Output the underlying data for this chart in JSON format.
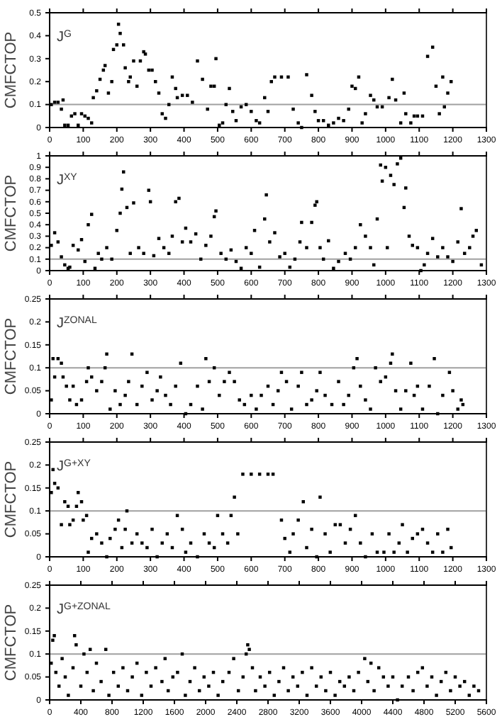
{
  "chart_data": [
    {
      "type": "scatter",
      "title": "J$^{G}$",
      "ylabel": "CMFCTOP",
      "xlim": [
        0,
        1300
      ],
      "xticks": [
        0,
        100,
        200,
        300,
        400,
        500,
        600,
        700,
        800,
        900,
        1000,
        1100,
        1200,
        1300
      ],
      "ylim": [
        0,
        0.5
      ],
      "yticks": [
        0,
        0.1,
        0.2,
        0.3,
        0.4,
        0.5
      ],
      "marker": "square",
      "grid": false,
      "ref_lines": [
        {
          "axis": "y",
          "value": 0.1,
          "color": "#a0a0a0"
        }
      ],
      "series": [
        {
          "color": "#000000",
          "x": [
            5,
            15,
            25,
            35,
            40,
            45,
            55,
            65,
            75,
            85,
            95,
            105,
            115,
            125,
            130,
            140,
            150,
            160,
            165,
            175,
            185,
            190,
            200,
            205,
            210,
            220,
            225,
            235,
            240,
            250,
            260,
            270,
            280,
            285,
            295,
            305,
            315,
            325,
            335,
            345,
            355,
            365,
            375,
            380,
            395,
            410,
            425,
            440,
            455,
            470,
            480,
            490,
            495,
            505,
            515,
            525,
            535,
            545,
            555,
            570,
            585,
            600,
            615,
            625,
            640,
            650,
            660,
            670,
            690,
            710,
            725,
            740,
            750,
            765,
            780,
            790,
            800,
            815,
            830,
            845,
            860,
            875,
            890,
            900,
            910,
            920,
            930,
            940,
            955,
            965,
            975,
            990,
            1010,
            1020,
            1030,
            1045,
            1055,
            1060,
            1075,
            1085,
            1095,
            1110,
            1125,
            1140,
            1150,
            1160,
            1170,
            1175,
            1185,
            1195
          ],
          "values": [
            0.1,
            0.11,
            0.11,
            0.08,
            0.12,
            0.01,
            0.01,
            0.05,
            0.06,
            0.01,
            0.06,
            0.05,
            0.04,
            0.02,
            0.13,
            0.16,
            0.21,
            0.25,
            0.27,
            0.15,
            0.2,
            0.34,
            0.36,
            0.45,
            0.41,
            0.36,
            0.26,
            0.2,
            0.22,
            0.29,
            0.18,
            0.29,
            0.33,
            0.32,
            0.25,
            0.25,
            0.2,
            0.15,
            0.06,
            0.04,
            0.1,
            0.22,
            0.17,
            0.13,
            0.14,
            0.14,
            0.11,
            0.29,
            0.21,
            0.08,
            0.18,
            0.18,
            0.3,
            0.01,
            0.02,
            0.1,
            0.17,
            0.07,
            0.03,
            0.09,
            0.1,
            0.07,
            0.03,
            0.02,
            0.13,
            0.07,
            0.2,
            0.22,
            0.22,
            0.22,
            0.08,
            0.02,
            0.0,
            0.23,
            0.14,
            0.07,
            0.03,
            0.03,
            0.01,
            0.02,
            0.04,
            0.03,
            0.08,
            0.18,
            0.17,
            0.22,
            0.02,
            0.06,
            0.14,
            0.12,
            0.09,
            0.09,
            0.13,
            0.21,
            0.12,
            0.02,
            0.15,
            0.06,
            0.02,
            0.05,
            0.05,
            0.05,
            0.31,
            0.35,
            0.18,
            0.06,
            0.22,
            0.09,
            0.15,
            0.2
          ]
        }
      ]
    },
    {
      "type": "scatter",
      "title": "J$^{XY}$",
      "ylabel": "CMFCTOP",
      "xlim": [
        0,
        1300
      ],
      "xticks": [
        0,
        100,
        200,
        300,
        400,
        500,
        600,
        700,
        800,
        900,
        1000,
        1100,
        1200,
        1300
      ],
      "ylim": [
        0,
        1
      ],
      "yticks": [
        0,
        0.1,
        0.2,
        0.3,
        0.4,
        0.5,
        0.6,
        0.7,
        0.8,
        0.9,
        1
      ],
      "marker": "square",
      "grid": false,
      "ref_lines": [
        {
          "axis": "y",
          "value": 0.1,
          "color": "#a0a0a0"
        }
      ],
      "series": [
        {
          "color": "#000000",
          "x": [
            5,
            15,
            25,
            35,
            45,
            55,
            60,
            70,
            85,
            95,
            105,
            115,
            125,
            135,
            145,
            155,
            170,
            185,
            200,
            210,
            215,
            220,
            230,
            240,
            250,
            265,
            280,
            295,
            300,
            310,
            325,
            340,
            355,
            365,
            375,
            385,
            395,
            405,
            420,
            435,
            450,
            465,
            480,
            490,
            495,
            510,
            525,
            540,
            555,
            570,
            585,
            600,
            610,
            625,
            640,
            645,
            655,
            670,
            685,
            700,
            715,
            730,
            745,
            750,
            765,
            780,
            790,
            795,
            805,
            815,
            830,
            845,
            860,
            880,
            895,
            910,
            925,
            940,
            955,
            965,
            975,
            985,
            990,
            1000,
            1005,
            1015,
            1025,
            1035,
            1045,
            1055,
            1060,
            1070,
            1080,
            1095,
            1105,
            1115,
            1125,
            1140,
            1155,
            1170,
            1185,
            1200,
            1215,
            1225,
            1235,
            1250,
            1260,
            1270,
            1285
          ],
          "values": [
            0.22,
            0.33,
            0.25,
            0.12,
            0.05,
            0.02,
            0.03,
            0.22,
            0.18,
            0.27,
            0.08,
            0.4,
            0.49,
            0.02,
            0.15,
            0.1,
            0.2,
            0.1,
            0.35,
            0.5,
            0.71,
            0.86,
            0.55,
            0.15,
            0.59,
            0.2,
            0.15,
            0.7,
            0.6,
            0.13,
            0.28,
            0.2,
            0.15,
            0.3,
            0.6,
            0.63,
            0.25,
            0.37,
            0.25,
            0.32,
            0.1,
            0.22,
            0.3,
            0.47,
            0.52,
            0.15,
            0.1,
            0.18,
            0.08,
            0.02,
            0.2,
            0.15,
            0.35,
            0.03,
            0.45,
            0.66,
            0.25,
            0.33,
            0.12,
            0.15,
            0.03,
            0.1,
            0.25,
            0.42,
            0.2,
            0.42,
            0.57,
            0.6,
            0.2,
            0.1,
            0.26,
            0.02,
            0.08,
            0.15,
            0.1,
            0.2,
            0.4,
            0.3,
            0.2,
            0.05,
            0.45,
            0.92,
            0.78,
            0.9,
            0.2,
            0.83,
            0.75,
            0.93,
            0.98,
            0.55,
            0.72,
            0.3,
            0.22,
            0.2,
            0.0,
            0.05,
            0.15,
            0.28,
            0.12,
            0.2,
            0.12,
            0.08,
            0.25,
            0.54,
            0.15,
            0.2,
            0.3,
            0.35,
            0.05
          ]
        }
      ]
    },
    {
      "type": "scatter",
      "title": "J$^{ZONAL}$",
      "ylabel": "CMFCTOP",
      "xlim": [
        0,
        1300
      ],
      "xticks": [
        0,
        100,
        200,
        300,
        400,
        500,
        600,
        700,
        800,
        900,
        1000,
        1100,
        1200,
        1300
      ],
      "ylim": [
        0,
        0.25
      ],
      "yticks": [
        0,
        0.05,
        0.1,
        0.15,
        0.2,
        0.25
      ],
      "marker": "square",
      "grid": false,
      "ref_lines": [
        {
          "axis": "y",
          "value": 0.1,
          "color": "#a0a0a0"
        }
      ],
      "series": [
        {
          "color": "#000000",
          "x": [
            5,
            10,
            15,
            25,
            35,
            40,
            50,
            60,
            70,
            80,
            95,
            110,
            115,
            125,
            140,
            155,
            165,
            170,
            180,
            195,
            210,
            225,
            235,
            245,
            260,
            275,
            290,
            305,
            320,
            330,
            345,
            360,
            375,
            390,
            405,
            420,
            440,
            455,
            465,
            475,
            490,
            505,
            520,
            535,
            550,
            565,
            580,
            600,
            615,
            630,
            650,
            665,
            680,
            690,
            705,
            720,
            740,
            750,
            765,
            780,
            795,
            805,
            820,
            840,
            860,
            875,
            890,
            905,
            915,
            925,
            940,
            955,
            970,
            985,
            1000,
            1015,
            1020,
            1030,
            1045,
            1060,
            1075,
            1085,
            1095,
            1110,
            1130,
            1145,
            1155,
            1170,
            1190,
            1200,
            1215,
            1225,
            1230
          ],
          "values": [
            0.03,
            0.12,
            0.08,
            0.12,
            0.11,
            0.08,
            0.06,
            0.03,
            0.06,
            0.02,
            0.03,
            0.07,
            0.1,
            0.08,
            0.05,
            0.07,
            0.1,
            0.13,
            0.01,
            0.05,
            0.02,
            0.04,
            0.07,
            0.13,
            0.02,
            0.06,
            0.09,
            0.03,
            0.05,
            0.08,
            0.04,
            0.02,
            0.06,
            0.11,
            0.0,
            0.02,
            0.06,
            0.01,
            0.12,
            0.07,
            0.1,
            0.04,
            0.07,
            0.09,
            0.07,
            0.03,
            0.02,
            0.04,
            0.01,
            0.04,
            0.06,
            0.02,
            0.05,
            0.09,
            0.07,
            0.01,
            0.06,
            0.09,
            0.02,
            0.03,
            0.05,
            0.09,
            0.04,
            0.02,
            0.07,
            0.02,
            0.04,
            0.1,
            0.12,
            0.06,
            0.03,
            0.01,
            0.1,
            0.07,
            0.08,
            0.11,
            0.13,
            0.05,
            0.01,
            0.05,
            0.11,
            0.04,
            0.06,
            0.01,
            0.06,
            0.12,
            0.0,
            0.04,
            0.09,
            0.05,
            0.01,
            0.03,
            0.02
          ]
        }
      ]
    },
    {
      "type": "scatter",
      "title": "J$^{G+XY}$",
      "ylabel": "CMFCTOP",
      "xlim": [
        0,
        1300
      ],
      "xticks": [
        0,
        100,
        200,
        300,
        400,
        500,
        600,
        700,
        800,
        900,
        1000,
        1100,
        1200,
        1300
      ],
      "ylim": [
        0,
        0.25
      ],
      "yticks": [
        0,
        0.05,
        0.1,
        0.15,
        0.2,
        0.25
      ],
      "marker": "square",
      "grid": false,
      "ref_lines": [
        {
          "axis": "y",
          "value": 0.1,
          "color": "#a0a0a0"
        }
      ],
      "series": [
        {
          "color": "#000000",
          "x": [
            5,
            10,
            15,
            25,
            35,
            45,
            55,
            60,
            70,
            80,
            85,
            95,
            100,
            110,
            115,
            125,
            140,
            155,
            170,
            180,
            195,
            205,
            215,
            225,
            230,
            245,
            260,
            275,
            290,
            305,
            320,
            335,
            350,
            365,
            380,
            395,
            405,
            420,
            440,
            460,
            475,
            490,
            500,
            515,
            530,
            540,
            550,
            560,
            575,
            600,
            625,
            650,
            665,
            690,
            700,
            715,
            725,
            740,
            755,
            765,
            780,
            795,
            805,
            820,
            835,
            850,
            865,
            880,
            895,
            910,
            925,
            940,
            960,
            975,
            995,
            1010,
            1025,
            1040,
            1050,
            1065,
            1080,
            1095,
            1110,
            1125,
            1140,
            1155,
            1170,
            1185,
            1195
          ],
          "values": [
            0.14,
            0.19,
            0.16,
            0.15,
            0.07,
            0.12,
            0.11,
            0.07,
            0.08,
            0.11,
            0.14,
            0.12,
            0.08,
            0.09,
            0.01,
            0.04,
            0.05,
            0.03,
            0.0,
            0.04,
            0.06,
            0.08,
            0.02,
            0.06,
            0.1,
            0.03,
            0.05,
            0.03,
            0.02,
            0.06,
            0.0,
            0.03,
            0.05,
            0.02,
            0.09,
            0.06,
            0.01,
            0.03,
            0.0,
            0.05,
            0.03,
            0.02,
            0.09,
            0.05,
            0.03,
            0.09,
            0.13,
            0.05,
            0.18,
            0.18,
            0.18,
            0.18,
            0.18,
            0.08,
            0.04,
            0.01,
            0.05,
            0.08,
            0.12,
            0.02,
            0.06,
            0.0,
            0.13,
            0.05,
            0.01,
            0.07,
            0.07,
            0.03,
            0.06,
            0.09,
            0.03,
            0.0,
            0.05,
            0.01,
            0.01,
            0.05,
            0.01,
            0.03,
            0.07,
            0.01,
            0.04,
            0.05,
            0.06,
            0.03,
            0.01,
            0.05,
            0.01,
            0.06,
            0.02
          ]
        }
      ]
    },
    {
      "type": "scatter",
      "title": "J$^{G+ZONAL}$",
      "ylabel": "CMFCTOP",
      "xlim": [
        0,
        5600
      ],
      "xticks": [
        0,
        400,
        800,
        1200,
        1600,
        2000,
        2400,
        2800,
        3200,
        3600,
        4000,
        4400,
        4800,
        5200,
        5600
      ],
      "ylim": [
        0,
        0.25
      ],
      "yticks": [
        0,
        0.05,
        0.1,
        0.15,
        0.2,
        0.25
      ],
      "marker": "square",
      "grid": false,
      "ref_lines": [
        {
          "axis": "y",
          "value": 0.1,
          "color": "#a0a0a0"
        }
      ],
      "series": [
        {
          "color": "#000000",
          "x": [
            20,
            40,
            60,
            80,
            120,
            160,
            200,
            240,
            300,
            320,
            340,
            400,
            440,
            480,
            520,
            560,
            600,
            660,
            720,
            760,
            820,
            880,
            940,
            1000,
            1060,
            1120,
            1180,
            1240,
            1300,
            1360,
            1440,
            1480,
            1520,
            1580,
            1640,
            1700,
            1740,
            1800,
            1860,
            1920,
            1980,
            2040,
            2100,
            2160,
            2220,
            2300,
            2360,
            2420,
            2480,
            2520,
            2540,
            2560,
            2600,
            2640,
            2700,
            2760,
            2820,
            2880,
            2940,
            3000,
            3060,
            3120,
            3180,
            3240,
            3300,
            3360,
            3420,
            3480,
            3540,
            3600,
            3660,
            3720,
            3780,
            3840,
            3900,
            3960,
            4040,
            4080,
            4120,
            4160,
            4220,
            4280,
            4340,
            4400,
            4460,
            4520,
            4600,
            4660,
            4720,
            4780,
            4840,
            4900,
            4960,
            5020,
            5080,
            5140,
            5200,
            5260,
            5320,
            5380,
            5440,
            5500
          ],
          "values": [
            0.08,
            0.13,
            0.14,
            0.06,
            0.03,
            0.09,
            0.05,
            0.01,
            0.07,
            0.14,
            0.12,
            0.03,
            0.1,
            0.06,
            0.11,
            0.02,
            0.08,
            0.04,
            0.11,
            0.01,
            0.06,
            0.03,
            0.07,
            0.02,
            0.05,
            0.08,
            0.01,
            0.06,
            0.03,
            0.07,
            0.04,
            0.09,
            0.02,
            0.05,
            0.06,
            0.1,
            0.01,
            0.04,
            0.07,
            0.02,
            0.05,
            0.03,
            0.06,
            0.01,
            0.04,
            0.06,
            0.09,
            0.02,
            0.05,
            0.1,
            0.12,
            0.11,
            0.07,
            0.02,
            0.05,
            0.03,
            0.06,
            0.01,
            0.04,
            0.07,
            0.02,
            0.05,
            0.03,
            0.06,
            0.01,
            0.07,
            0.03,
            0.05,
            0.02,
            0.06,
            0.01,
            0.04,
            0.03,
            0.05,
            0.02,
            0.06,
            0.09,
            0.04,
            0.08,
            0.02,
            0.07,
            0.05,
            0.03,
            0.05,
            0.0,
            0.03,
            0.05,
            0.02,
            0.06,
            0.07,
            0.03,
            0.05,
            0.01,
            0.04,
            0.06,
            0.02,
            0.05,
            0.03,
            0.04,
            0.01,
            0.03,
            0.02
          ]
        }
      ]
    }
  ]
}
